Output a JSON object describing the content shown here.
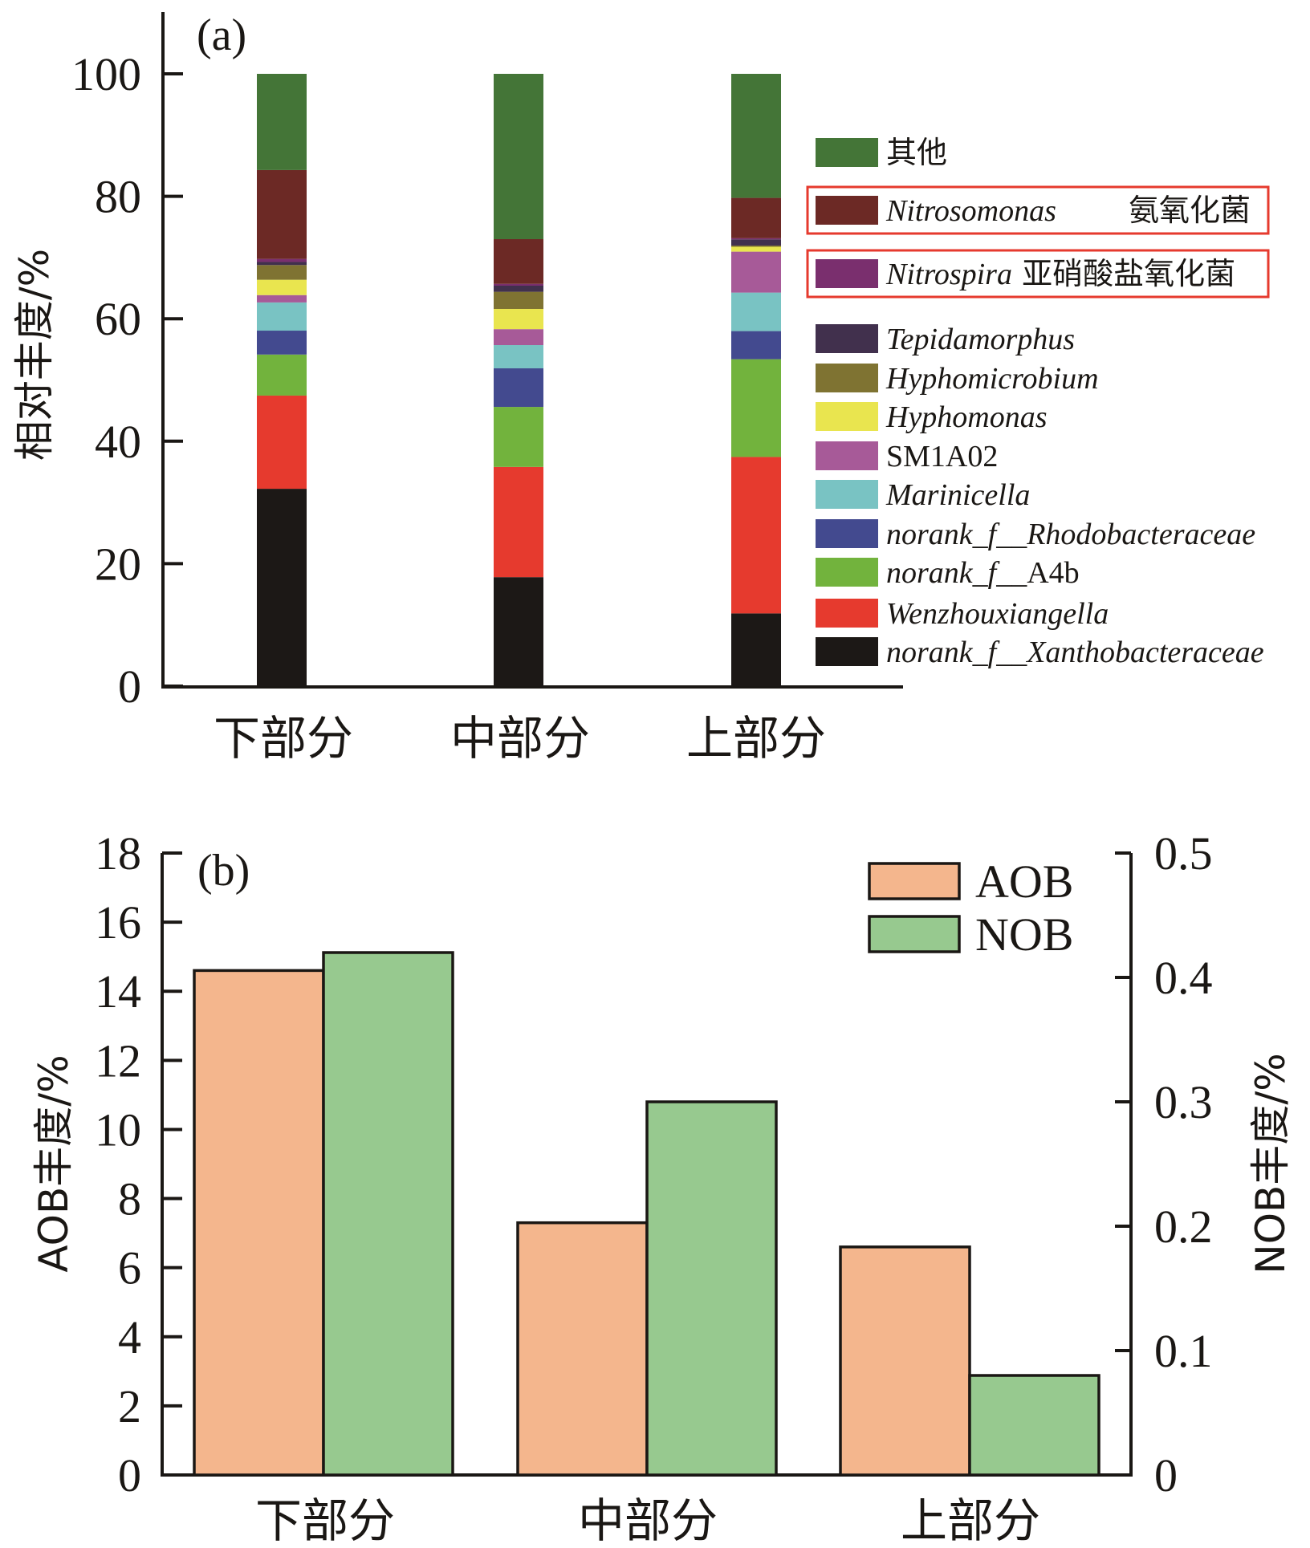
{
  "chart_data": [
    {
      "type": "bar",
      "stacked": true,
      "panel_label": "(a)",
      "ylabel": "相对丰度/%",
      "ylim": [
        0,
        100
      ],
      "yticks": [
        "0",
        "20",
        "40",
        "60",
        "80",
        "100"
      ],
      "categories": [
        "下部分",
        "中部分",
        "上部分"
      ],
      "legend_placement": "right",
      "series": [
        {
          "name": "norank_f__Xanthobacteraceae",
          "name_parts": [
            {
              "t": "norank_f__Xanthobacteraceae",
              "i": true
            }
          ],
          "color": "#1c1816",
          "values": [
            32.2,
            17.8,
            11.9
          ]
        },
        {
          "name": "Wenzhouxiangella",
          "name_parts": [
            {
              "t": "Wenzhouxiangella",
              "i": true
            }
          ],
          "color": "#e63a2e",
          "values": [
            15.2,
            18.0,
            25.6
          ]
        },
        {
          "name": "norank_f__A4b",
          "name_parts": [
            {
              "t": "norank_f__",
              "i": true
            },
            {
              "t": "A4b",
              "i": false
            }
          ],
          "color": "#72b33d",
          "values": [
            6.7,
            9.8,
            16.0
          ]
        },
        {
          "name": "norank_f__Rhodobacteraceae",
          "name_parts": [
            {
              "t": "norank_f__Rhodobacteraceae",
              "i": true
            }
          ],
          "color": "#434a8f",
          "values": [
            3.9,
            6.3,
            4.6
          ]
        },
        {
          "name": "Marinicella",
          "name_parts": [
            {
              "t": "Marinicella",
              "i": true
            }
          ],
          "color": "#79c3c3",
          "values": [
            4.6,
            3.8,
            6.3
          ]
        },
        {
          "name": "SM1A02",
          "name_parts": [
            {
              "t": "SM1A02",
              "i": false
            }
          ],
          "color": "#a75a98",
          "values": [
            1.2,
            2.6,
            6.7
          ]
        },
        {
          "name": "Hyphomonas",
          "name_parts": [
            {
              "t": "Hyphomonas",
              "i": true
            }
          ],
          "color": "#e9e54f",
          "values": [
            2.5,
            3.3,
            0.8
          ]
        },
        {
          "name": "Hyphomicrobium",
          "name_parts": [
            {
              "t": "Hyphomicrobium",
              "i": true
            }
          ],
          "color": "#7f7332",
          "values": [
            2.4,
            2.8,
            0.2
          ]
        },
        {
          "name": "Tepidamorphus",
          "name_parts": [
            {
              "t": "Tepidamorphus",
              "i": true
            }
          ],
          "color": "#41304d",
          "values": [
            0.5,
            1.0,
            1.0
          ]
        },
        {
          "name": "Nitrospira 亚硝酸盐氧化菌",
          "name_parts": [
            {
              "t": "Nitrospira",
              "i": true
            },
            {
              "t": " 亚硝酸盐氧化菌",
              "i": false,
              "cn": true
            }
          ],
          "color": "#7a2f6e",
          "values": [
            0.5,
            0.3,
            0.2
          ],
          "highlight": true
        },
        {
          "name": "Nitrosomonas 氨氧化菌",
          "name_parts": [
            {
              "t": "Nitrosomonas",
              "i": true
            },
            {
              "t": "氨氧化菌",
              "i": false,
              "cn": true,
              "gap": true
            }
          ],
          "color": "#6c2925",
          "values": [
            14.5,
            7.3,
            6.6
          ],
          "highlight": true
        },
        {
          "name": "其他",
          "name_parts": [
            {
              "t": "其他",
              "i": false,
              "cn": true
            }
          ],
          "color": "#447537",
          "values": [
            15.7,
            27.0,
            20.3
          ]
        }
      ],
      "highlight_box_color": "#e63a2e"
    },
    {
      "type": "bar",
      "grouped": true,
      "dual_axis": true,
      "panel_label": "(b)",
      "categories": [
        "下部分",
        "中部分",
        "上部分"
      ],
      "ylabel": "AOB丰度/%",
      "ylim": [
        0,
        18
      ],
      "yticks": [
        "0",
        "2",
        "4",
        "6",
        "8",
        "10",
        "12",
        "14",
        "16",
        "18"
      ],
      "y2label": "NOB丰度/%",
      "y2lim": [
        0,
        0.5
      ],
      "y2ticks": [
        "0",
        "0.1",
        "0.2",
        "0.3",
        "0.4",
        "0.5"
      ],
      "legend_placement": "top-right",
      "series": [
        {
          "name": "AOB",
          "axis": "left",
          "color": "#f4b68d",
          "values": [
            14.6,
            7.3,
            6.6
          ]
        },
        {
          "name": "NOB",
          "axis": "right",
          "color": "#97c98f",
          "values": [
            0.42,
            0.3,
            0.08
          ]
        }
      ]
    }
  ]
}
